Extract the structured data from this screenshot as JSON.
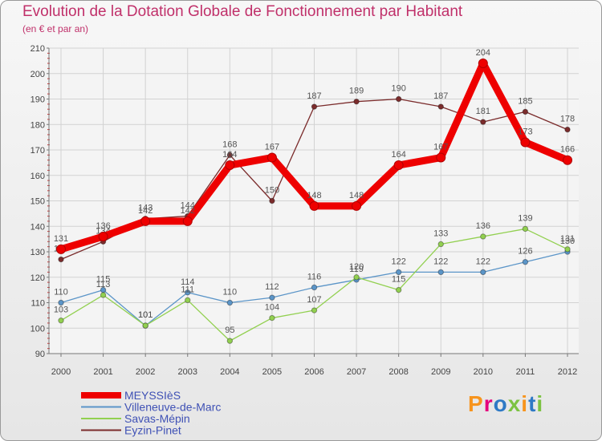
{
  "chart_data": {
    "type": "line",
    "title": "Evolution de la Dotation Globale de Fonctionnement par Habitant",
    "subtitle": "(en € et par an)",
    "x": [
      2000,
      2001,
      2002,
      2003,
      2004,
      2005,
      2006,
      2007,
      2008,
      2009,
      2010,
      2011,
      2012
    ],
    "x_labels": [
      "2000",
      "2001",
      "2002",
      "2003",
      "2004",
      "2005",
      "2006",
      "2007",
      "2008",
      "2009",
      "2010",
      "2011",
      "2012"
    ],
    "ylim": [
      90,
      210
    ],
    "yticks": [
      90,
      100,
      110,
      120,
      130,
      140,
      150,
      160,
      170,
      180,
      190,
      200,
      210
    ],
    "grid": true,
    "legend_position": "bottom-left",
    "series": [
      {
        "name": "MEYSSIèS",
        "color": "#ee0000",
        "values": [
          131,
          136,
          142,
          142,
          164,
          167,
          148,
          148,
          164,
          167,
          204,
          173,
          166
        ],
        "labels": [
          "131",
          "136",
          "142",
          "142",
          "164",
          "167",
          "148",
          "148",
          "164",
          "167",
          "204",
          "173",
          "166"
        ]
      },
      {
        "name": "Villeneuve-de-Marc",
        "color": "#5b95c8",
        "values": [
          110,
          115,
          101,
          114,
          110,
          112,
          116,
          119,
          122,
          122,
          122,
          126,
          130
        ],
        "labels": [
          "110",
          "115",
          "101",
          "114",
          "110",
          "112",
          "116",
          "119",
          "122",
          "122",
          "122",
          "126",
          "130"
        ]
      },
      {
        "name": "Savas-Mépin",
        "color": "#92d050",
        "values": [
          103,
          113,
          101,
          111,
          95,
          104,
          107,
          120,
          115,
          133,
          136,
          139,
          131
        ],
        "labels": [
          "103",
          "113",
          "101",
          "111",
          "95",
          "104",
          "107",
          "120",
          "115",
          "133",
          "136",
          "139",
          "131"
        ]
      },
      {
        "name": "Eyzin-Pinet",
        "color": "#7b2c2c",
        "values": [
          127,
          134,
          143,
          144,
          168,
          150,
          187,
          189,
          190,
          187,
          181,
          185,
          178
        ],
        "labels": [
          "127",
          "134",
          "143",
          "144",
          "168",
          "150",
          "187",
          "189",
          "190",
          "187",
          "181",
          "185",
          "178"
        ]
      }
    ]
  },
  "legend_label_color": "#3f51b5",
  "branding": {
    "logo": "Proxiti",
    "logo_colors": [
      "#f7941d",
      "#e5007d",
      "#2e79c5",
      "#7cc242",
      "#f7941d",
      "#2e79c5",
      "#7cc242"
    ]
  }
}
